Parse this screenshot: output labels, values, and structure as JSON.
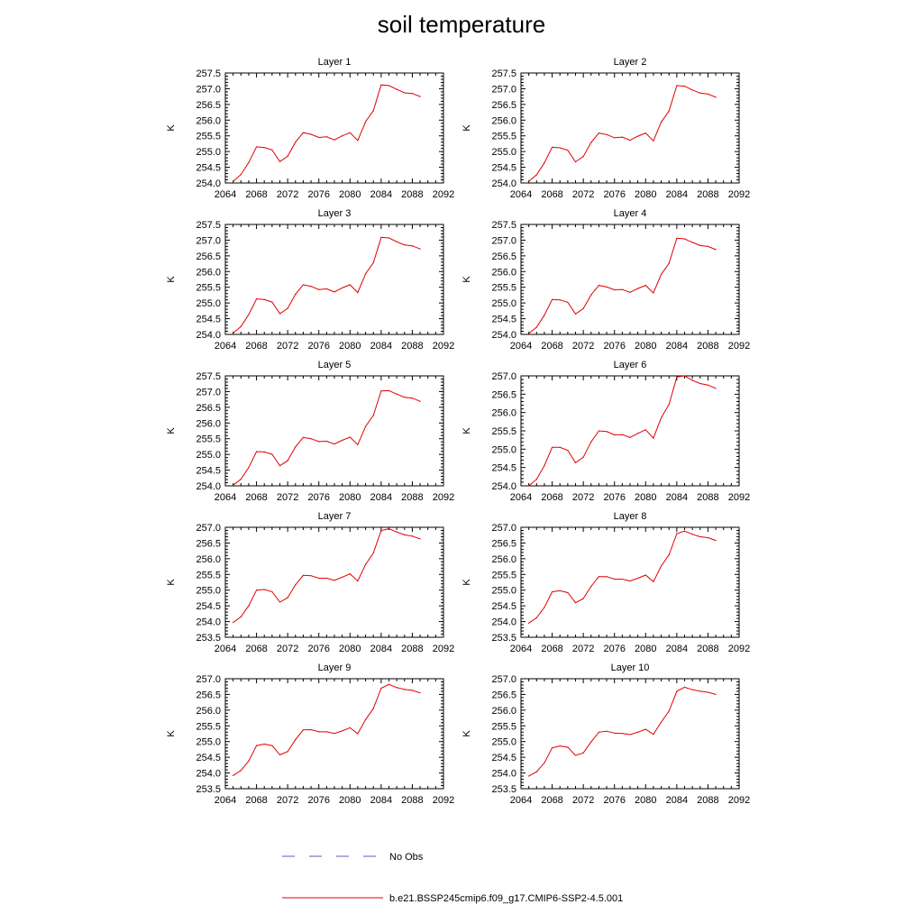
{
  "title": "soil temperature",
  "legend": {
    "obs_label": "No Obs",
    "obs_color": "#5a5ac8",
    "model_label": "b.e21.BSSP245cmip6.f09_g17.CMIP6-SSP2-4.5.001",
    "model_color": "#e00000"
  },
  "chart_data": [
    {
      "type": "line",
      "title": "Layer 1",
      "xlabel": "",
      "ylabel": "K",
      "xlim": [
        2064,
        2092
      ],
      "ylim": [
        254.0,
        257.5
      ],
      "xticks": [
        2064,
        2068,
        2072,
        2076,
        2080,
        2084,
        2088,
        2092
      ],
      "yticks": [
        254.0,
        254.5,
        255.0,
        255.5,
        256.0,
        256.5,
        257.0,
        257.5
      ],
      "x": [
        2065,
        2066,
        2067,
        2068,
        2069,
        2070,
        2071,
        2072,
        2073,
        2074,
        2075,
        2076,
        2077,
        2078,
        2079,
        2080,
        2081,
        2082,
        2083,
        2084,
        2085,
        2086,
        2087,
        2088,
        2089
      ],
      "series": [
        {
          "name": "b.e21.BSSP245cmip6.f09_g17.CMIP6-SSP2-4.5.001",
          "values": [
            254.05,
            254.27,
            254.65,
            255.15,
            255.13,
            255.05,
            254.68,
            254.85,
            255.3,
            255.6,
            255.55,
            255.45,
            255.47,
            255.37,
            255.5,
            255.6,
            255.35,
            255.95,
            256.3,
            257.12,
            257.1,
            256.98,
            256.87,
            256.85,
            256.75
          ]
        }
      ]
    },
    {
      "type": "line",
      "title": "Layer 2",
      "xlabel": "",
      "ylabel": "K",
      "xlim": [
        2064,
        2092
      ],
      "ylim": [
        254.0,
        257.5
      ],
      "xticks": [
        2064,
        2068,
        2072,
        2076,
        2080,
        2084,
        2088,
        2092
      ],
      "yticks": [
        254.0,
        254.5,
        255.0,
        255.5,
        256.0,
        256.5,
        257.0,
        257.5
      ],
      "x": [
        2065,
        2066,
        2067,
        2068,
        2069,
        2070,
        2071,
        2072,
        2073,
        2074,
        2075,
        2076,
        2077,
        2078,
        2079,
        2080,
        2081,
        2082,
        2083,
        2084,
        2085,
        2086,
        2087,
        2088,
        2089
      ],
      "series": [
        {
          "name": "b.e21.BSSP245cmip6.f09_g17.CMIP6-SSP2-4.5.001",
          "values": [
            254.05,
            254.26,
            254.64,
            255.14,
            255.12,
            255.04,
            254.67,
            254.84,
            255.29,
            255.59,
            255.54,
            255.44,
            255.46,
            255.36,
            255.49,
            255.59,
            255.34,
            255.94,
            256.29,
            257.1,
            257.08,
            256.96,
            256.86,
            256.83,
            256.73
          ]
        }
      ]
    },
    {
      "type": "line",
      "title": "Layer 3",
      "xlabel": "",
      "ylabel": "K",
      "xlim": [
        2064,
        2092
      ],
      "ylim": [
        254.0,
        257.5
      ],
      "xticks": [
        2064,
        2068,
        2072,
        2076,
        2080,
        2084,
        2088,
        2092
      ],
      "yticks": [
        254.0,
        254.5,
        255.0,
        255.5,
        256.0,
        256.5,
        257.0,
        257.5
      ],
      "x": [
        2065,
        2066,
        2067,
        2068,
        2069,
        2070,
        2071,
        2072,
        2073,
        2074,
        2075,
        2076,
        2077,
        2078,
        2079,
        2080,
        2081,
        2082,
        2083,
        2084,
        2085,
        2086,
        2087,
        2088,
        2089
      ],
      "series": [
        {
          "name": "b.e21.BSSP245cmip6.f09_g17.CMIP6-SSP2-4.5.001",
          "values": [
            254.04,
            254.25,
            254.63,
            255.13,
            255.11,
            255.03,
            254.66,
            254.83,
            255.28,
            255.58,
            255.53,
            255.43,
            255.45,
            255.35,
            255.48,
            255.58,
            255.33,
            255.93,
            256.28,
            257.09,
            257.07,
            256.95,
            256.85,
            256.82,
            256.72
          ]
        }
      ]
    },
    {
      "type": "line",
      "title": "Layer 4",
      "xlabel": "",
      "ylabel": "K",
      "xlim": [
        2064,
        2092
      ],
      "ylim": [
        254.0,
        257.5
      ],
      "xticks": [
        2064,
        2068,
        2072,
        2076,
        2080,
        2084,
        2088,
        2092
      ],
      "yticks": [
        254.0,
        254.5,
        255.0,
        255.5,
        256.0,
        256.5,
        257.0,
        257.5
      ],
      "x": [
        2065,
        2066,
        2067,
        2068,
        2069,
        2070,
        2071,
        2072,
        2073,
        2074,
        2075,
        2076,
        2077,
        2078,
        2079,
        2080,
        2081,
        2082,
        2083,
        2084,
        2085,
        2086,
        2087,
        2088,
        2089
      ],
      "series": [
        {
          "name": "b.e21.BSSP245cmip6.f09_g17.CMIP6-SSP2-4.5.001",
          "values": [
            254.03,
            254.23,
            254.61,
            255.11,
            255.1,
            255.02,
            254.65,
            254.82,
            255.26,
            255.56,
            255.51,
            255.42,
            255.43,
            255.34,
            255.46,
            255.56,
            255.32,
            255.91,
            256.26,
            257.06,
            257.04,
            256.93,
            256.83,
            256.8,
            256.7
          ]
        }
      ]
    },
    {
      "type": "line",
      "title": "Layer 5",
      "xlabel": "",
      "ylabel": "K",
      "xlim": [
        2064,
        2092
      ],
      "ylim": [
        254.0,
        257.5
      ],
      "xticks": [
        2064,
        2068,
        2072,
        2076,
        2080,
        2084,
        2088,
        2092
      ],
      "yticks": [
        254.0,
        254.5,
        255.0,
        255.5,
        256.0,
        256.5,
        257.0,
        257.5
      ],
      "x": [
        2065,
        2066,
        2067,
        2068,
        2069,
        2070,
        2071,
        2072,
        2073,
        2074,
        2075,
        2076,
        2077,
        2078,
        2079,
        2080,
        2081,
        2082,
        2083,
        2084,
        2085,
        2086,
        2087,
        2088,
        2089
      ],
      "series": [
        {
          "name": "b.e21.BSSP245cmip6.f09_g17.CMIP6-SSP2-4.5.001",
          "values": [
            254.02,
            254.21,
            254.58,
            255.09,
            255.08,
            255.0,
            254.64,
            254.8,
            255.24,
            255.54,
            255.5,
            255.41,
            255.42,
            255.33,
            255.45,
            255.55,
            255.31,
            255.89,
            256.24,
            257.02,
            257.03,
            256.92,
            256.82,
            256.79,
            256.69
          ]
        }
      ]
    },
    {
      "type": "line",
      "title": "Layer 6",
      "xlabel": "",
      "ylabel": "K",
      "xlim": [
        2064,
        2092
      ],
      "ylim": [
        254.0,
        257.0
      ],
      "xticks": [
        2064,
        2068,
        2072,
        2076,
        2080,
        2084,
        2088,
        2092
      ],
      "yticks": [
        254.0,
        254.5,
        255.0,
        255.5,
        256.0,
        256.5,
        257.0
      ],
      "x": [
        2065,
        2066,
        2067,
        2068,
        2069,
        2070,
        2071,
        2072,
        2073,
        2074,
        2075,
        2076,
        2077,
        2078,
        2079,
        2080,
        2081,
        2082,
        2083,
        2084,
        2085,
        2086,
        2087,
        2088,
        2089
      ],
      "series": [
        {
          "name": "b.e21.BSSP245cmip6.f09_g17.CMIP6-SSP2-4.5.001",
          "values": [
            254.0,
            254.18,
            254.55,
            255.05,
            255.05,
            254.97,
            254.63,
            254.78,
            255.2,
            255.5,
            255.48,
            255.39,
            255.4,
            255.32,
            255.43,
            255.53,
            255.3,
            255.86,
            256.22,
            256.97,
            257.0,
            256.88,
            256.79,
            256.75,
            256.66
          ]
        }
      ]
    },
    {
      "type": "line",
      "title": "Layer 7",
      "xlabel": "",
      "ylabel": "K",
      "xlim": [
        2064,
        2092
      ],
      "ylim": [
        253.5,
        257.0
      ],
      "xticks": [
        2064,
        2068,
        2072,
        2076,
        2080,
        2084,
        2088,
        2092
      ],
      "yticks": [
        253.5,
        254.0,
        254.5,
        255.0,
        255.5,
        256.0,
        256.5,
        257.0
      ],
      "x": [
        2065,
        2066,
        2067,
        2068,
        2069,
        2070,
        2071,
        2072,
        2073,
        2074,
        2075,
        2076,
        2077,
        2078,
        2079,
        2080,
        2081,
        2082,
        2083,
        2084,
        2085,
        2086,
        2087,
        2088,
        2089
      ],
      "series": [
        {
          "name": "b.e21.BSSP245cmip6.f09_g17.CMIP6-SSP2-4.5.001",
          "values": [
            253.97,
            254.15,
            254.5,
            255.0,
            255.02,
            254.95,
            254.62,
            254.76,
            255.17,
            255.47,
            255.46,
            255.38,
            255.38,
            255.31,
            255.41,
            255.52,
            255.29,
            255.82,
            256.18,
            256.9,
            256.95,
            256.85,
            256.76,
            256.72,
            256.63
          ]
        }
      ]
    },
    {
      "type": "line",
      "title": "Layer 8",
      "xlabel": "",
      "ylabel": "K",
      "xlim": [
        2064,
        2092
      ],
      "ylim": [
        253.5,
        257.0
      ],
      "xticks": [
        2064,
        2068,
        2072,
        2076,
        2080,
        2084,
        2088,
        2092
      ],
      "yticks": [
        253.5,
        254.0,
        254.5,
        255.0,
        255.5,
        256.0,
        256.5,
        257.0
      ],
      "x": [
        2065,
        2066,
        2067,
        2068,
        2069,
        2070,
        2071,
        2072,
        2073,
        2074,
        2075,
        2076,
        2077,
        2078,
        2079,
        2080,
        2081,
        2082,
        2083,
        2084,
        2085,
        2086,
        2087,
        2088,
        2089
      ],
      "series": [
        {
          "name": "b.e21.BSSP245cmip6.f09_g17.CMIP6-SSP2-4.5.001",
          "values": [
            253.95,
            254.12,
            254.45,
            254.95,
            254.98,
            254.92,
            254.6,
            254.73,
            255.12,
            255.43,
            255.43,
            255.35,
            255.35,
            255.29,
            255.38,
            255.48,
            255.27,
            255.77,
            256.12,
            256.8,
            256.88,
            256.78,
            256.7,
            256.67,
            256.58
          ]
        }
      ]
    },
    {
      "type": "line",
      "title": "Layer 9",
      "xlabel": "",
      "ylabel": "K",
      "xlim": [
        2064,
        2092
      ],
      "ylim": [
        253.5,
        257.0
      ],
      "xticks": [
        2064,
        2068,
        2072,
        2076,
        2080,
        2084,
        2088,
        2092
      ],
      "yticks": [
        253.5,
        254.0,
        254.5,
        255.0,
        255.5,
        256.0,
        256.5,
        257.0
      ],
      "x": [
        2065,
        2066,
        2067,
        2068,
        2069,
        2070,
        2071,
        2072,
        2073,
        2074,
        2075,
        2076,
        2077,
        2078,
        2079,
        2080,
        2081,
        2082,
        2083,
        2084,
        2085,
        2086,
        2087,
        2088,
        2089
      ],
      "series": [
        {
          "name": "b.e21.BSSP245cmip6.f09_g17.CMIP6-SSP2-4.5.001",
          "values": [
            253.92,
            254.08,
            254.38,
            254.87,
            254.92,
            254.87,
            254.58,
            254.68,
            255.06,
            255.37,
            255.38,
            255.31,
            255.31,
            255.26,
            255.34,
            255.44,
            255.25,
            255.7,
            256.05,
            256.7,
            256.82,
            256.72,
            256.66,
            256.63,
            256.55
          ]
        }
      ]
    },
    {
      "type": "line",
      "title": "Layer 10",
      "xlabel": "",
      "ylabel": "K",
      "xlim": [
        2064,
        2092
      ],
      "ylim": [
        253.5,
        257.0
      ],
      "xticks": [
        2064,
        2068,
        2072,
        2076,
        2080,
        2084,
        2088,
        2092
      ],
      "yticks": [
        253.5,
        254.0,
        254.5,
        255.0,
        255.5,
        256.0,
        256.5,
        257.0
      ],
      "x": [
        2065,
        2066,
        2067,
        2068,
        2069,
        2070,
        2071,
        2072,
        2073,
        2074,
        2075,
        2076,
        2077,
        2078,
        2079,
        2080,
        2081,
        2082,
        2083,
        2084,
        2085,
        2086,
        2087,
        2088,
        2089
      ],
      "series": [
        {
          "name": "b.e21.BSSP245cmip6.f09_g17.CMIP6-SSP2-4.5.001",
          "values": [
            253.9,
            254.04,
            254.32,
            254.8,
            254.86,
            254.82,
            254.56,
            254.64,
            254.99,
            255.3,
            255.33,
            255.27,
            255.26,
            255.22,
            255.3,
            255.39,
            255.23,
            255.62,
            255.97,
            256.6,
            256.73,
            256.65,
            256.6,
            256.57,
            256.5
          ]
        }
      ]
    }
  ]
}
